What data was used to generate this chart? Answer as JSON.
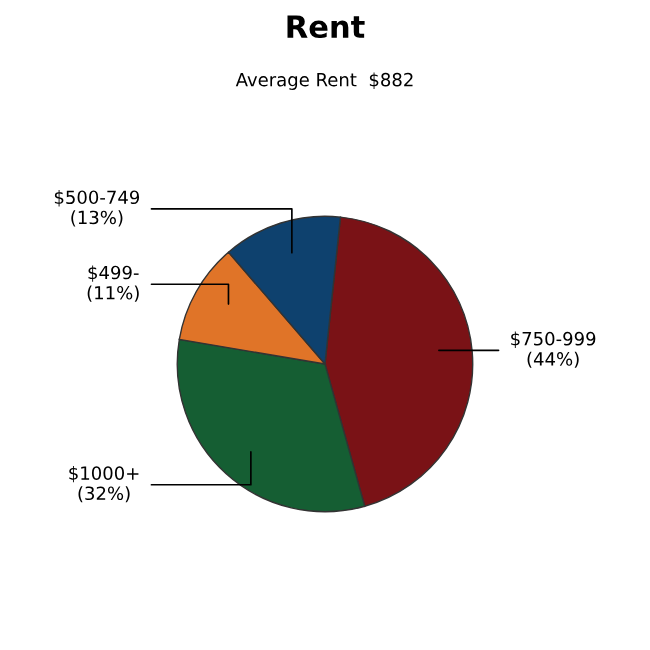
{
  "chart_data": {
    "type": "pie",
    "title": "Rent",
    "subtitle": "Average Rent  $882",
    "categories": [
      "$750-999",
      "$1000+",
      "$499-",
      "$500-749"
    ],
    "values": [
      44,
      32,
      11,
      13
    ],
    "value_labels": [
      "(44%)",
      "(32%)",
      "(11%)",
      "(13%)"
    ],
    "colors": [
      "#7a1216",
      "#155e33",
      "#e07428",
      "#0e416e"
    ]
  }
}
